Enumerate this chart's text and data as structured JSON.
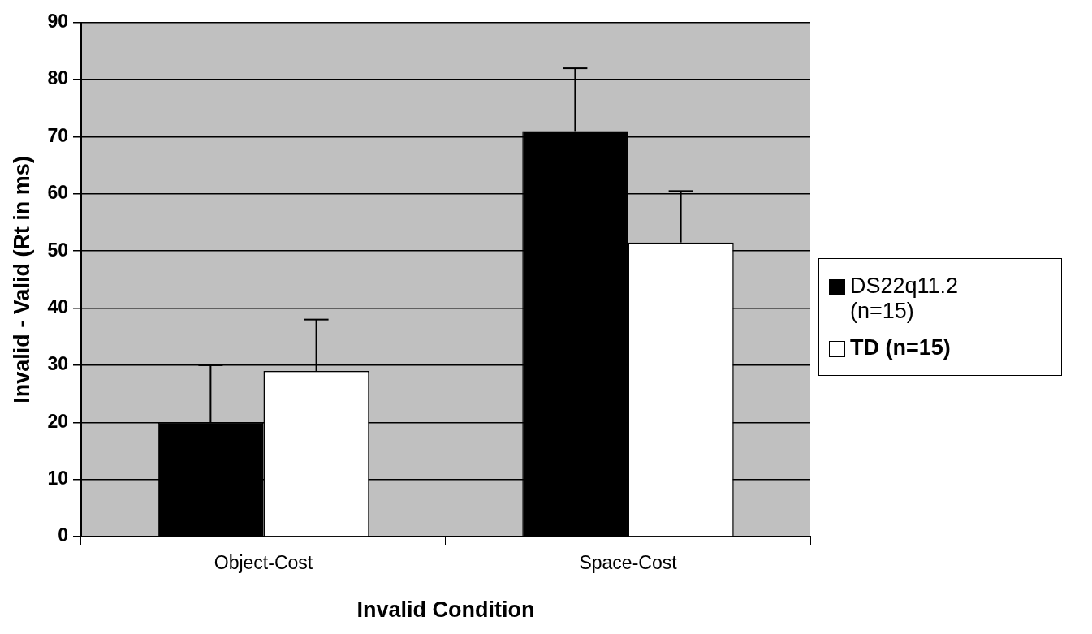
{
  "chart_data": {
    "type": "bar",
    "xlabel": "Invalid Condition",
    "ylabel": "Invalid - Valid (Rt in ms)",
    "categories": [
      "Object-Cost",
      "Space-Cost"
    ],
    "series": [
      {
        "name": "DS22q11.2 (n=15)",
        "color": "#000000",
        "values": [
          20,
          71
        ],
        "errors": [
          [
            20,
            30
          ],
          [
            71,
            82
          ]
        ]
      },
      {
        "name": "TD (n=15)",
        "color": "#ffffff",
        "values": [
          29,
          51.5
        ],
        "errors": [
          [
            29,
            38
          ],
          [
            51.5,
            60.5
          ]
        ]
      }
    ],
    "ylim": [
      0,
      90
    ],
    "yticks": [
      0,
      10,
      20,
      30,
      40,
      50,
      60,
      70,
      80,
      90
    ],
    "grid": "y",
    "legend": "right"
  }
}
